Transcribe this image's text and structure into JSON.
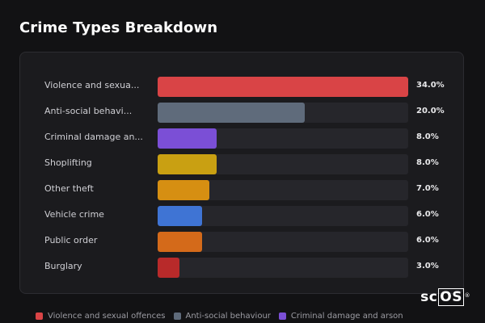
{
  "page": {
    "title": "Crime Types Breakdown"
  },
  "chart_data": {
    "type": "bar",
    "orientation": "horizontal",
    "categories": [
      "Violence and sexual offences",
      "Anti-social behaviour",
      "Criminal damage and arson",
      "Shoplifting",
      "Other theft",
      "Vehicle crime",
      "Public order",
      "Burglary"
    ],
    "display_labels": [
      "Violence and sexua...",
      "Anti-social behavi...",
      "Criminal damage an...",
      "Shoplifting",
      "Other theft",
      "Vehicle crime",
      "Public order",
      "Burglary"
    ],
    "values": [
      34.0,
      20.0,
      8.0,
      8.0,
      7.0,
      6.0,
      6.0,
      3.0
    ],
    "value_labels": [
      "34.0%",
      "20.0%",
      "8.0%",
      "8.0%",
      "7.0%",
      "6.0%",
      "6.0%",
      "3.0%"
    ],
    "colors": [
      "#d94446",
      "#5f6b7b",
      "#7b4fd6",
      "#c9a012",
      "#d68f12",
      "#3f74d4",
      "#d46a1a",
      "#b82a2a"
    ],
    "xlim": [
      0,
      34
    ],
    "title": "Crime Types Breakdown",
    "xlabel": "",
    "ylabel": "",
    "legend_position": "bottom"
  },
  "legend": {
    "items": [
      {
        "label": "Violence and sexual offences",
        "color": "#d94446"
      },
      {
        "label": "Anti-social behaviour",
        "color": "#5f6b7b"
      },
      {
        "label": "Criminal damage and arson",
        "color": "#7b4fd6"
      }
    ]
  },
  "logo": {
    "prefix": "sc",
    "boxed": "OS",
    "mark": "®"
  }
}
